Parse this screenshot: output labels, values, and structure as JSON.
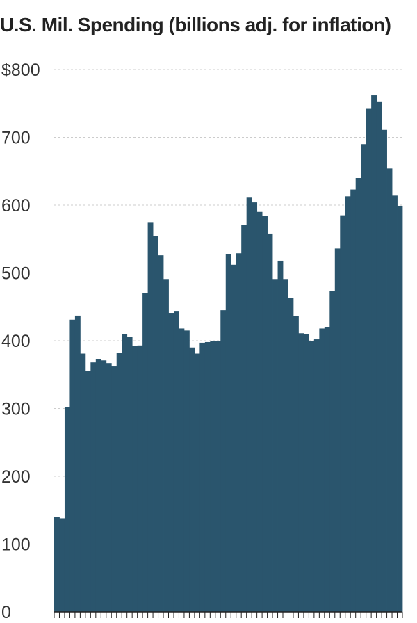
{
  "chart_data": {
    "type": "bar",
    "title": "U.S. Mil. Spending (billions adj. for inflation)",
    "xlabel": "",
    "ylabel": "",
    "ylim": [
      0,
      800
    ],
    "y_ticks": [
      0,
      100,
      200,
      300,
      400,
      500,
      600,
      700,
      800
    ],
    "y_tick_labels": [
      "0",
      "100",
      "200",
      "300",
      "400",
      "500",
      "600",
      "700",
      "$800"
    ],
    "grid": true,
    "bar_color": "#2a556d",
    "grid_color": "#cccccc",
    "values": [
      140,
      138,
      302,
      431,
      437,
      381,
      355,
      368,
      373,
      371,
      367,
      362,
      382,
      410,
      406,
      392,
      393,
      470,
      575,
      554,
      526,
      491,
      441,
      444,
      418,
      415,
      390,
      381,
      397,
      398,
      400,
      399,
      445,
      528,
      512,
      529,
      571,
      611,
      604,
      590,
      584,
      558,
      491,
      518,
      491,
      463,
      436,
      411,
      410,
      399,
      402,
      418,
      420,
      473,
      536,
      585,
      613,
      623,
      640,
      690,
      742,
      762,
      753,
      711,
      654,
      614,
      599
    ]
  }
}
